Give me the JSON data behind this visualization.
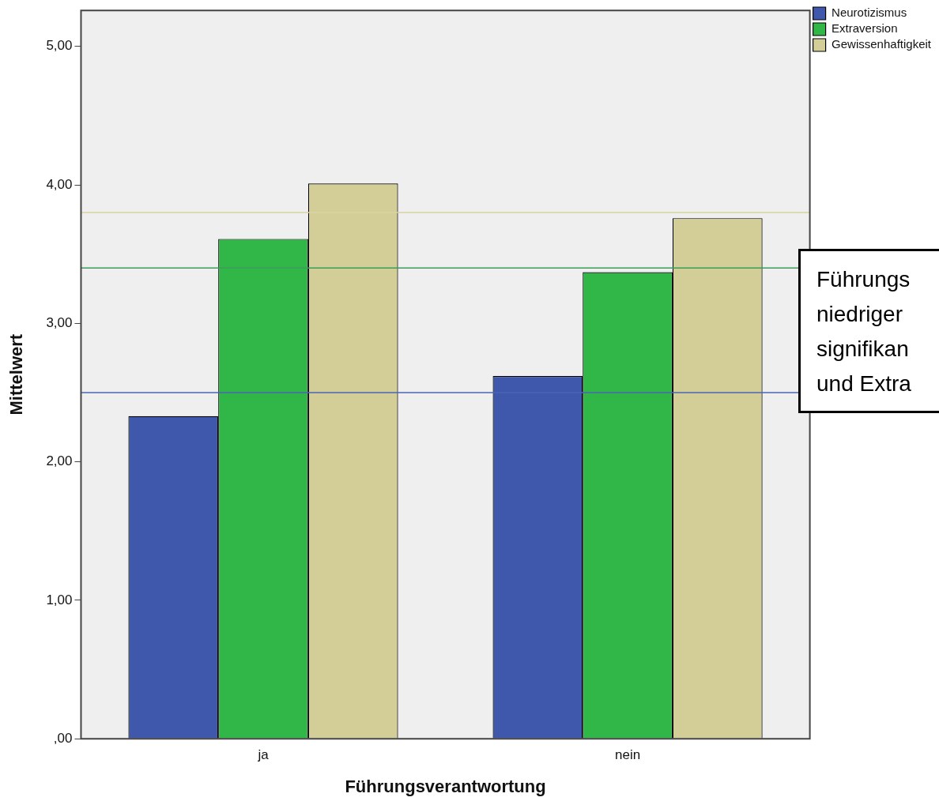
{
  "chart_data": {
    "type": "bar",
    "xlabel": "Führungsverantwortung",
    "ylabel": "Mittelwert",
    "categories": [
      "ja",
      "nein"
    ],
    "series": [
      {
        "name": "Neurotizismus",
        "color": "#3f58ab",
        "values": [
          2.33,
          2.62
        ]
      },
      {
        "name": "Extraversion",
        "color": "#30b748",
        "values": [
          3.61,
          3.37
        ]
      },
      {
        "name": "Gewissenhaftigkeit",
        "color": "#d3ce97",
        "values": [
          4.01,
          3.76
        ]
      }
    ],
    "ylim": [
      0,
      5.26
    ],
    "yticks": [
      {
        "value": 0,
        "label": ",00"
      },
      {
        "value": 1,
        "label": "1,00"
      },
      {
        "value": 2,
        "label": "2,00"
      },
      {
        "value": 3,
        "label": "3,00"
      },
      {
        "value": 4,
        "label": "4,00"
      },
      {
        "value": 5,
        "label": "5,00"
      }
    ],
    "ref_lines": [
      {
        "axis": "y",
        "value": 2.5,
        "color": "#4a64b4"
      },
      {
        "axis": "y",
        "value": 3.4,
        "color": "#3a9e5a"
      },
      {
        "axis": "y",
        "value": 3.8,
        "color": "#d8d3a0"
      }
    ],
    "annotations": [
      "Führungs\nniedriger\nsignifikan\nund Extra"
    ],
    "legend": "top right",
    "grid": false
  }
}
